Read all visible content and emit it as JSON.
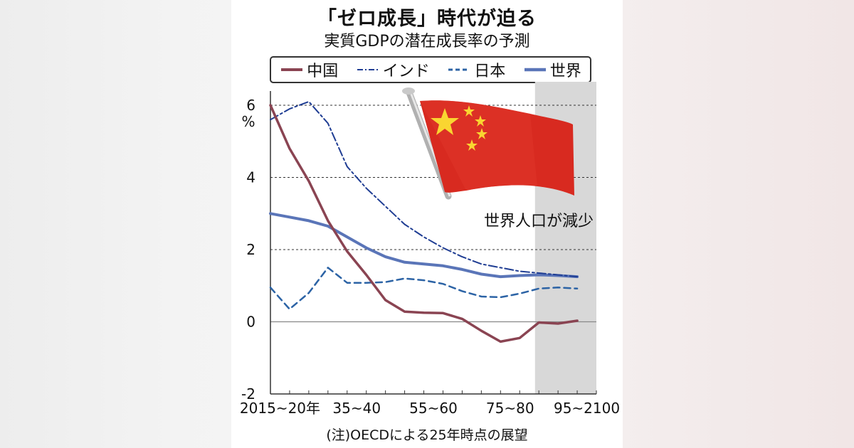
{
  "chart_data": {
    "type": "line",
    "title": "「ゼロ成長」時代が迫る",
    "subtitle": "実質GDPの潜在成長率の予測",
    "ylabel": "%",
    "ylim": [
      -2,
      6
    ],
    "yticks": [
      -2,
      0,
      2,
      4,
      6
    ],
    "x": [
      2015,
      2020,
      2025,
      2030,
      2035,
      2040,
      2045,
      2050,
      2055,
      2060,
      2065,
      2070,
      2075,
      2080,
      2085,
      2090,
      2095,
      2100
    ],
    "xlim": [
      2015,
      2100
    ],
    "xtick_labels": [
      {
        "x": 2017.5,
        "label": "2015~20年"
      },
      {
        "x": 2037.5,
        "label": "35~40"
      },
      {
        "x": 2057.5,
        "label": "55~60"
      },
      {
        "x": 2077.5,
        "label": "75~80"
      },
      {
        "x": 2097.5,
        "label": "95~2100"
      }
    ],
    "grid": "dashed horizontal at 2, 4, 6",
    "legend_position": "top",
    "series": [
      {
        "name": "中国",
        "color": "#8a4452",
        "style": "solid",
        "width": 3.5,
        "values": [
          6.0,
          4.8,
          3.9,
          2.8,
          1.95,
          1.3,
          0.6,
          0.28,
          0.25,
          0.24,
          0.08,
          -0.25,
          -0.55,
          -0.45,
          -0.02,
          -0.05,
          0.03,
          null
        ]
      },
      {
        "name": "インド",
        "color": "#1f3d93",
        "style": "dashdot",
        "width": 2,
        "values": [
          5.6,
          5.9,
          6.1,
          5.5,
          4.3,
          3.7,
          3.2,
          2.7,
          2.35,
          2.05,
          1.8,
          1.6,
          1.5,
          1.4,
          1.35,
          1.3,
          1.25,
          null
        ]
      },
      {
        "name": "日本",
        "color": "#2c63a5",
        "style": "dashed",
        "width": 2.5,
        "values": [
          0.95,
          0.35,
          0.8,
          1.5,
          1.08,
          1.08,
          1.1,
          1.2,
          1.15,
          1.05,
          0.85,
          0.7,
          0.68,
          0.78,
          0.92,
          0.95,
          0.92,
          null
        ]
      },
      {
        "name": "世界",
        "color": "#5a75b8",
        "style": "solid",
        "width": 4,
        "values": [
          3.0,
          2.9,
          2.8,
          2.65,
          2.35,
          2.05,
          1.8,
          1.65,
          1.6,
          1.55,
          1.45,
          1.32,
          1.25,
          1.28,
          1.3,
          1.28,
          1.25,
          null
        ]
      }
    ],
    "shaded_region": {
      "from": 2084,
      "to": 2100,
      "label": "世界人口が減少"
    },
    "note": "(注)OECDによる25年時点の展望"
  }
}
